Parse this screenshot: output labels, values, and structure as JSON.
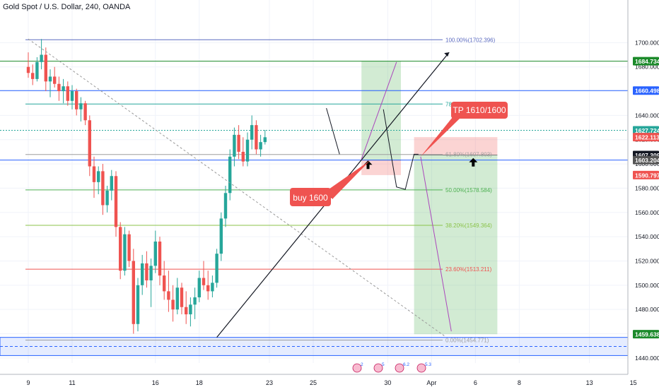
{
  "chart_data": {
    "type": "candlestick",
    "title": "Gold Spot / U.S. Dollar, 240, OANDA",
    "ylim": [
      1437,
      1727
    ],
    "price_axis": {
      "ticks": [
        1440,
        1460,
        1480,
        1500,
        1520,
        1540,
        1560,
        1580,
        1600,
        1620,
        1640,
        1660,
        1680,
        1700
      ],
      "tick_labels": [
        "1440.000",
        "1460.000",
        "1480.000",
        "1500.000",
        "1520.000",
        "1540.000",
        "1560.000",
        "1580.000",
        "1600.000",
        "1620.000",
        "1640.000",
        "1660.000",
        "1680.000",
        "1700.000"
      ]
    },
    "time_axis": {
      "labels": [
        "9",
        "11",
        "16",
        "18",
        "23",
        "25",
        "30",
        "Apr",
        "6",
        "8",
        "13",
        "15"
      ],
      "index": [
        0,
        10,
        29,
        39,
        55,
        65,
        82,
        92,
        102,
        112,
        128,
        138
      ]
    },
    "candles_ohlc": [
      [
        1680,
        1692,
        1671,
        1675
      ],
      [
        1675,
        1682,
        1665,
        1670
      ],
      [
        1670,
        1688,
        1668,
        1684
      ],
      [
        1684,
        1703,
        1678,
        1690
      ],
      [
        1690,
        1696,
        1660,
        1668
      ],
      [
        1668,
        1678,
        1655,
        1672
      ],
      [
        1672,
        1680,
        1663,
        1666
      ],
      [
        1666,
        1672,
        1652,
        1660
      ],
      [
        1660,
        1670,
        1650,
        1664
      ],
      [
        1664,
        1668,
        1648,
        1652
      ],
      [
        1652,
        1665,
        1645,
        1660
      ],
      [
        1660,
        1662,
        1640,
        1645
      ],
      [
        1645,
        1655,
        1635,
        1650
      ],
      [
        1650,
        1652,
        1632,
        1636
      ],
      [
        1636,
        1640,
        1590,
        1598
      ],
      [
        1598,
        1606,
        1572,
        1585
      ],
      [
        1585,
        1598,
        1575,
        1594
      ],
      [
        1594,
        1600,
        1558,
        1566
      ],
      [
        1566,
        1582,
        1560,
        1578
      ],
      [
        1578,
        1595,
        1570,
        1590
      ],
      [
        1590,
        1594,
        1540,
        1548
      ],
      [
        1548,
        1552,
        1505,
        1512
      ],
      [
        1512,
        1548,
        1508,
        1542
      ],
      [
        1542,
        1545,
        1515,
        1520
      ],
      [
        1520,
        1530,
        1460,
        1468
      ],
      [
        1468,
        1506,
        1462,
        1500
      ],
      [
        1500,
        1525,
        1492,
        1518
      ],
      [
        1518,
        1528,
        1498,
        1504
      ],
      [
        1504,
        1522,
        1482,
        1516
      ],
      [
        1516,
        1545,
        1510,
        1536
      ],
      [
        1536,
        1540,
        1500,
        1508
      ],
      [
        1508,
        1520,
        1488,
        1495
      ],
      [
        1495,
        1512,
        1478,
        1488
      ],
      [
        1488,
        1500,
        1470,
        1480
      ],
      [
        1480,
        1506,
        1476,
        1498
      ],
      [
        1498,
        1502,
        1476,
        1482
      ],
      [
        1482,
        1495,
        1468,
        1476
      ],
      [
        1476,
        1490,
        1466,
        1484
      ],
      [
        1484,
        1498,
        1472,
        1490
      ],
      [
        1490,
        1512,
        1486,
        1506
      ],
      [
        1506,
        1520,
        1496,
        1500
      ],
      [
        1500,
        1512,
        1488,
        1495
      ],
      [
        1495,
        1508,
        1490,
        1502
      ],
      [
        1502,
        1530,
        1498,
        1526
      ],
      [
        1526,
        1560,
        1520,
        1555
      ],
      [
        1555,
        1582,
        1548,
        1576
      ],
      [
        1576,
        1612,
        1570,
        1606
      ],
      [
        1606,
        1630,
        1598,
        1624
      ],
      [
        1624,
        1632,
        1604,
        1610
      ],
      [
        1610,
        1622,
        1598,
        1602
      ],
      [
        1602,
        1626,
        1598,
        1620
      ],
      [
        1620,
        1640,
        1612,
        1632
      ],
      [
        1632,
        1636,
        1608,
        1612
      ],
      [
        1612,
        1624,
        1606,
        1618
      ],
      [
        1618,
        1628,
        1616,
        1622
      ]
    ],
    "fibonacci_levels": [
      {
        "label": "100.00%(1702.396)",
        "value": 1702.396
      },
      {
        "label": "78.60%(1649.404)",
        "value": 1649.404
      },
      {
        "label": "61.80%(1607.803)",
        "value": 1607.803
      },
      {
        "label": "50.00%(1578.584)",
        "value": 1578.584
      },
      {
        "label": "38.20%(1549.364)",
        "value": 1549.364
      },
      {
        "label": "23.60%(1513.211)",
        "value": 1513.211
      },
      {
        "label": "0.00%(1454.771)",
        "value": 1454.771
      }
    ],
    "horizontal_lines": [
      1684.734,
      1660.498,
      1627.724,
      1603.204
    ],
    "price_labels": [
      {
        "value": 1684.734,
        "text": "1684.734",
        "color": "#1b8a2a"
      },
      {
        "value": 1660.498,
        "text": "1660.498",
        "color": "#2962ff"
      },
      {
        "value": 1627.724,
        "text": "1627.724",
        "color": "#26a69a"
      },
      {
        "value": 1622.113,
        "text": "1622.113",
        "color": "#ef5350"
      },
      {
        "value": 1607.309,
        "text": "1607.309",
        "color": "#131722"
      },
      {
        "value": 1603.204,
        "text": "1603.204",
        "color": "#555555"
      },
      {
        "value": 1590.797,
        "text": "1590.797",
        "color": "#ef5350"
      },
      {
        "value": 1459.638,
        "text": "1459.638",
        "color": "#1b8a2a"
      }
    ],
    "annotations": [
      {
        "text": "buy 1600",
        "color": "#ef5350"
      },
      {
        "text": "TP 1610/1600",
        "color": "#ef5350"
      }
    ],
    "event_badges": [
      "2",
      "5",
      "6.2",
      "5.3"
    ],
    "colors": {
      "up": "#26a69a",
      "down": "#ef5350",
      "fib": "#2962ff",
      "support_zone": "#2962ff"
    }
  }
}
